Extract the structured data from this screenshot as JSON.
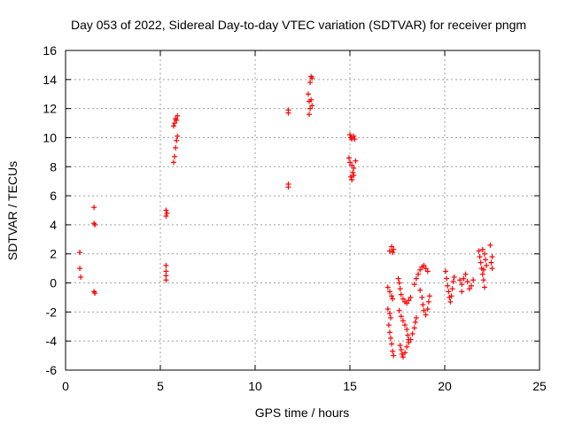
{
  "chart_data": {
    "type": "scatter",
    "title": "Day 053 of 2022, Sidereal Day-to-day VTEC variation (SDTVAR) for receiver pngm",
    "xlabel": "GPS time / hours",
    "ylabel": "SDTVAR / TECUs",
    "xlim": [
      0,
      25
    ],
    "ylim": [
      -6,
      16
    ],
    "xticks": [
      0,
      5,
      10,
      15,
      20,
      25
    ],
    "yticks": [
      -6,
      -4,
      -2,
      0,
      2,
      4,
      6,
      8,
      10,
      12,
      14,
      16
    ],
    "grid": true,
    "marker": "+",
    "color": "#ff0000",
    "series": [
      {
        "name": "SDTVAR",
        "points": [
          [
            0.75,
            2.1
          ],
          [
            0.75,
            1.0
          ],
          [
            0.8,
            0.4
          ],
          [
            1.5,
            5.2
          ],
          [
            1.5,
            4.1
          ],
          [
            1.55,
            4.0
          ],
          [
            1.5,
            -0.6
          ],
          [
            1.55,
            -0.7
          ],
          [
            5.3,
            5.0
          ],
          [
            5.3,
            4.6
          ],
          [
            5.35,
            4.8
          ],
          [
            5.3,
            1.2
          ],
          [
            5.3,
            0.8
          ],
          [
            5.3,
            0.5
          ],
          [
            5.3,
            0.2
          ],
          [
            5.7,
            8.3
          ],
          [
            5.75,
            8.7
          ],
          [
            5.8,
            9.3
          ],
          [
            5.85,
            9.8
          ],
          [
            5.9,
            10.1
          ],
          [
            5.7,
            10.8
          ],
          [
            5.75,
            11.0
          ],
          [
            5.8,
            11.3
          ],
          [
            5.9,
            11.5
          ],
          [
            5.85,
            11.2
          ],
          [
            11.75,
            11.9
          ],
          [
            11.75,
            11.7
          ],
          [
            11.75,
            6.8
          ],
          [
            11.75,
            6.6
          ],
          [
            12.8,
            13.0
          ],
          [
            12.85,
            12.5
          ],
          [
            12.9,
            12.0
          ],
          [
            12.85,
            11.6
          ],
          [
            12.9,
            13.8
          ],
          [
            12.95,
            14.2
          ],
          [
            13.0,
            14.1
          ],
          [
            12.95,
            12.6
          ],
          [
            13.0,
            12.2
          ],
          [
            15.0,
            10.2
          ],
          [
            15.05,
            10.0
          ],
          [
            15.1,
            9.9
          ],
          [
            15.2,
            10.1
          ],
          [
            15.25,
            9.9
          ],
          [
            14.95,
            8.6
          ],
          [
            15.0,
            8.3
          ],
          [
            15.1,
            8.1
          ],
          [
            15.15,
            7.6
          ],
          [
            15.2,
            7.9
          ],
          [
            15.05,
            7.3
          ],
          [
            15.1,
            7.1
          ],
          [
            15.2,
            7.4
          ],
          [
            15.3,
            8.4
          ],
          [
            17.1,
            2.2
          ],
          [
            17.2,
            2.5
          ],
          [
            17.3,
            2.3
          ],
          [
            17.25,
            2.1
          ],
          [
            17.0,
            -0.3
          ],
          [
            17.1,
            -0.6
          ],
          [
            17.2,
            -0.9
          ],
          [
            17.25,
            -1.1
          ],
          [
            17.0,
            -1.8
          ],
          [
            17.1,
            -2.1
          ],
          [
            17.15,
            -2.4
          ],
          [
            17.05,
            -2.9
          ],
          [
            17.1,
            -3.4
          ],
          [
            17.15,
            -3.8
          ],
          [
            17.2,
            -4.2
          ],
          [
            17.25,
            -4.7
          ],
          [
            17.3,
            -5.0
          ],
          [
            17.55,
            0.3
          ],
          [
            17.6,
            0.0
          ],
          [
            17.65,
            -0.4
          ],
          [
            17.7,
            -0.8
          ],
          [
            17.8,
            -1.1
          ],
          [
            17.9,
            -1.3
          ],
          [
            18.0,
            -1.4
          ],
          [
            18.1,
            -1.2
          ],
          [
            18.2,
            -1.0
          ],
          [
            17.6,
            -1.9
          ],
          [
            17.7,
            -2.3
          ],
          [
            17.8,
            -2.6
          ],
          [
            17.9,
            -2.9
          ],
          [
            18.0,
            -3.2
          ],
          [
            18.05,
            -3.6
          ],
          [
            18.1,
            -3.9
          ],
          [
            17.65,
            -4.3
          ],
          [
            17.7,
            -4.6
          ],
          [
            17.75,
            -4.9
          ],
          [
            17.8,
            -5.1
          ],
          [
            17.9,
            -4.8
          ],
          [
            18.0,
            -4.4
          ],
          [
            18.1,
            -4.1
          ],
          [
            18.2,
            -3.9
          ],
          [
            18.3,
            -3.5
          ],
          [
            18.4,
            -3.1
          ],
          [
            18.45,
            -2.7
          ],
          [
            18.5,
            -2.4
          ],
          [
            18.4,
            -0.1
          ],
          [
            18.5,
            0.3
          ],
          [
            18.6,
            0.6
          ],
          [
            18.7,
            0.9
          ],
          [
            18.8,
            1.1
          ],
          [
            18.9,
            1.2
          ],
          [
            19.0,
            1.0
          ],
          [
            19.1,
            0.8
          ],
          [
            18.7,
            -0.5
          ],
          [
            18.8,
            -1.0
          ],
          [
            18.85,
            -1.5
          ],
          [
            18.9,
            -1.9
          ],
          [
            19.0,
            -2.2
          ],
          [
            19.1,
            -1.8
          ],
          [
            19.15,
            -1.3
          ],
          [
            19.2,
            -0.9
          ],
          [
            20.05,
            0.8
          ],
          [
            20.1,
            0.3
          ],
          [
            20.15,
            -0.2
          ],
          [
            20.2,
            -0.6
          ],
          [
            20.25,
            -1.0
          ],
          [
            20.3,
            -1.3
          ],
          [
            20.35,
            -0.9
          ],
          [
            20.4,
            -0.4
          ],
          [
            20.45,
            0.1
          ],
          [
            20.5,
            0.4
          ],
          [
            20.8,
            0.2
          ],
          [
            20.9,
            -0.1
          ],
          [
            21.0,
            0.3
          ],
          [
            21.1,
            0.6
          ],
          [
            21.2,
            0.1
          ],
          [
            21.3,
            -0.4
          ],
          [
            21.4,
            -0.2
          ],
          [
            21.5,
            0.2
          ],
          [
            20.9,
            -0.6
          ],
          [
            21.8,
            2.2
          ],
          [
            21.85,
            1.8
          ],
          [
            21.9,
            1.4
          ],
          [
            21.95,
            1.0
          ],
          [
            22.0,
            0.6
          ],
          [
            22.05,
            0.2
          ],
          [
            22.1,
            -0.3
          ],
          [
            22.0,
            2.3
          ],
          [
            22.1,
            2.0
          ],
          [
            22.15,
            1.6
          ],
          [
            22.2,
            1.2
          ],
          [
            22.05,
            0.9
          ],
          [
            22.4,
            2.6
          ],
          [
            22.5,
            1.8
          ],
          [
            22.5,
            1.0
          ],
          [
            22.45,
            1.4
          ]
        ]
      }
    ]
  }
}
